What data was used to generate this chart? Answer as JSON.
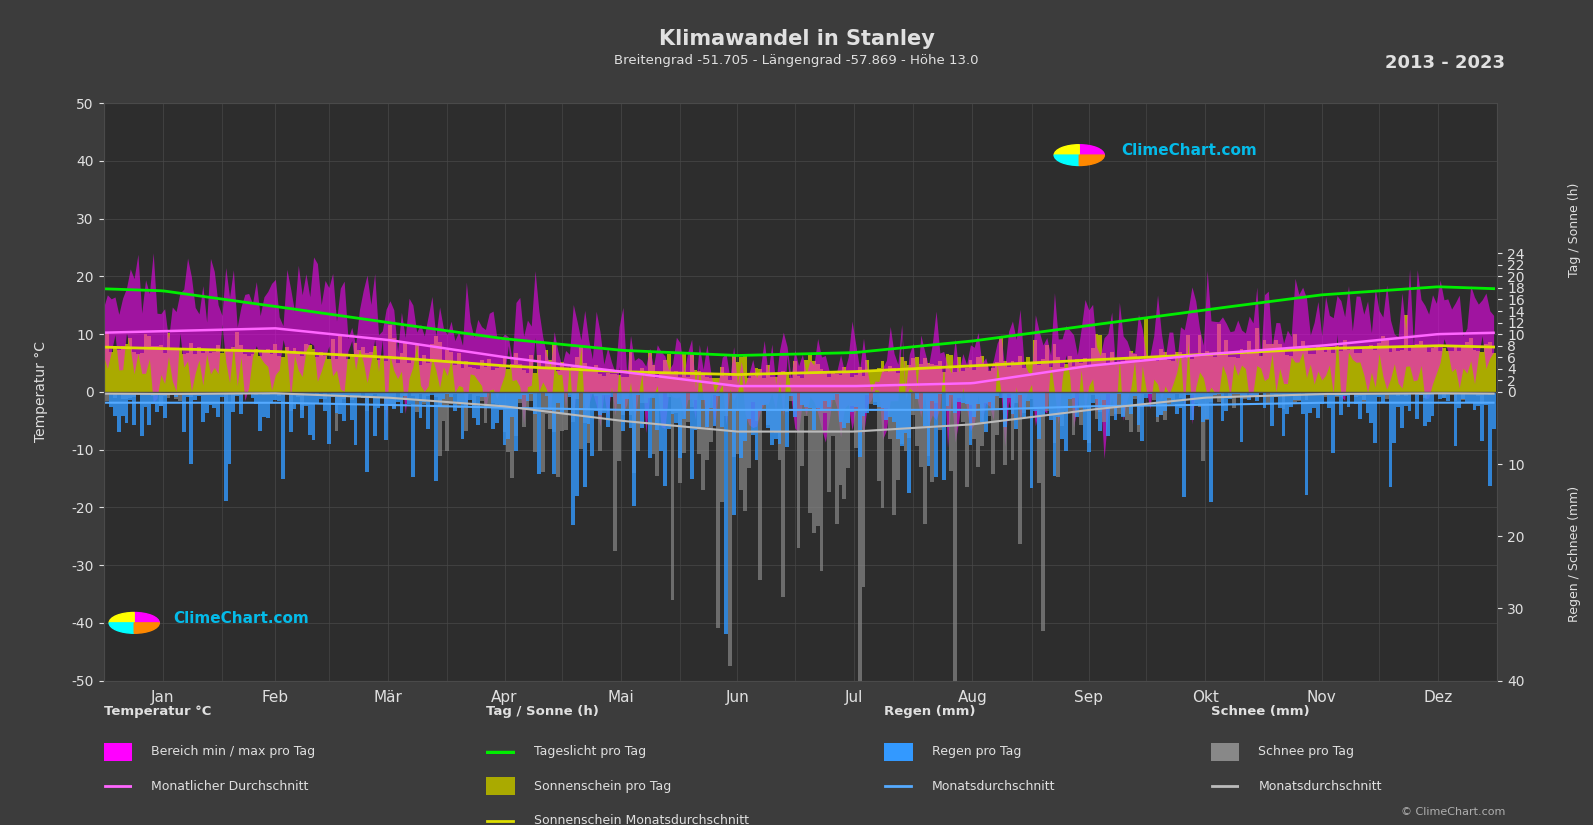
{
  "title": "Klimawandel in Stanley",
  "subtitle": "Breitengrad -51.705 - Längengrad -57.869 - Höhe 13.0",
  "year_range": "2013 - 2023",
  "bg_color": "#3c3c3c",
  "plot_bg_color": "#2d2d2d",
  "grid_color": "#4a4a4a",
  "text_color": "#e0e0e0",
  "months": [
    "Jan",
    "Feb",
    "Mär",
    "Apr",
    "Mai",
    "Jun",
    "Jul",
    "Aug",
    "Sep",
    "Okt",
    "Nov",
    "Dez"
  ],
  "temp_ylim": [
    -50,
    50
  ],
  "sun_ylim": [
    0,
    24
  ],
  "rain_ylim": [
    0,
    40
  ],
  "temp_min_monthly": [
    5.0,
    5.5,
    3.5,
    1.5,
    -1.0,
    -3.0,
    -3.5,
    -3.0,
    -0.5,
    1.5,
    2.5,
    4.0
  ],
  "temp_max_monthly": [
    16.5,
    17.0,
    14.5,
    11.0,
    8.0,
    5.5,
    5.0,
    6.5,
    9.5,
    12.0,
    14.0,
    15.5
  ],
  "temp_avg_monthly": [
    10.5,
    11.0,
    9.0,
    6.0,
    3.5,
    1.0,
    1.0,
    1.5,
    4.5,
    6.5,
    8.0,
    10.0
  ],
  "daylight_monthly": [
    17.5,
    14.8,
    12.0,
    9.2,
    7.2,
    6.3,
    6.8,
    8.8,
    11.5,
    14.2,
    16.8,
    18.2
  ],
  "sunshine_monthly_avg": [
    7.5,
    7.0,
    6.0,
    4.5,
    3.5,
    3.0,
    3.5,
    4.5,
    5.5,
    6.5,
    7.5,
    8.0
  ],
  "rain_monthly_avg_mm": [
    1.5,
    1.5,
    1.8,
    2.2,
    2.5,
    2.5,
    2.5,
    2.5,
    2.0,
    1.8,
    1.5,
    1.5
  ],
  "snow_monthly_avg_mm": [
    0.3,
    0.2,
    0.8,
    2.0,
    4.0,
    5.5,
    5.5,
    4.5,
    2.5,
    0.8,
    0.3,
    0.2
  ],
  "days_per_month": [
    31,
    28,
    31,
    30,
    31,
    30,
    31,
    31,
    30,
    31,
    30,
    31
  ],
  "sun_color": "#aaaa00",
  "daylight_color": "#00ee00",
  "sunshine_avg_color": "#dddd00",
  "temp_fill_color": "#ff00ff",
  "temp_avg_color": "#ff66ff",
  "rain_bar_color": "#3399ff",
  "rain_avg_color": "#55aaff",
  "snow_bar_color": "#888888",
  "snow_avg_color": "#bbbbbb",
  "watermark_color": "#00ccff"
}
